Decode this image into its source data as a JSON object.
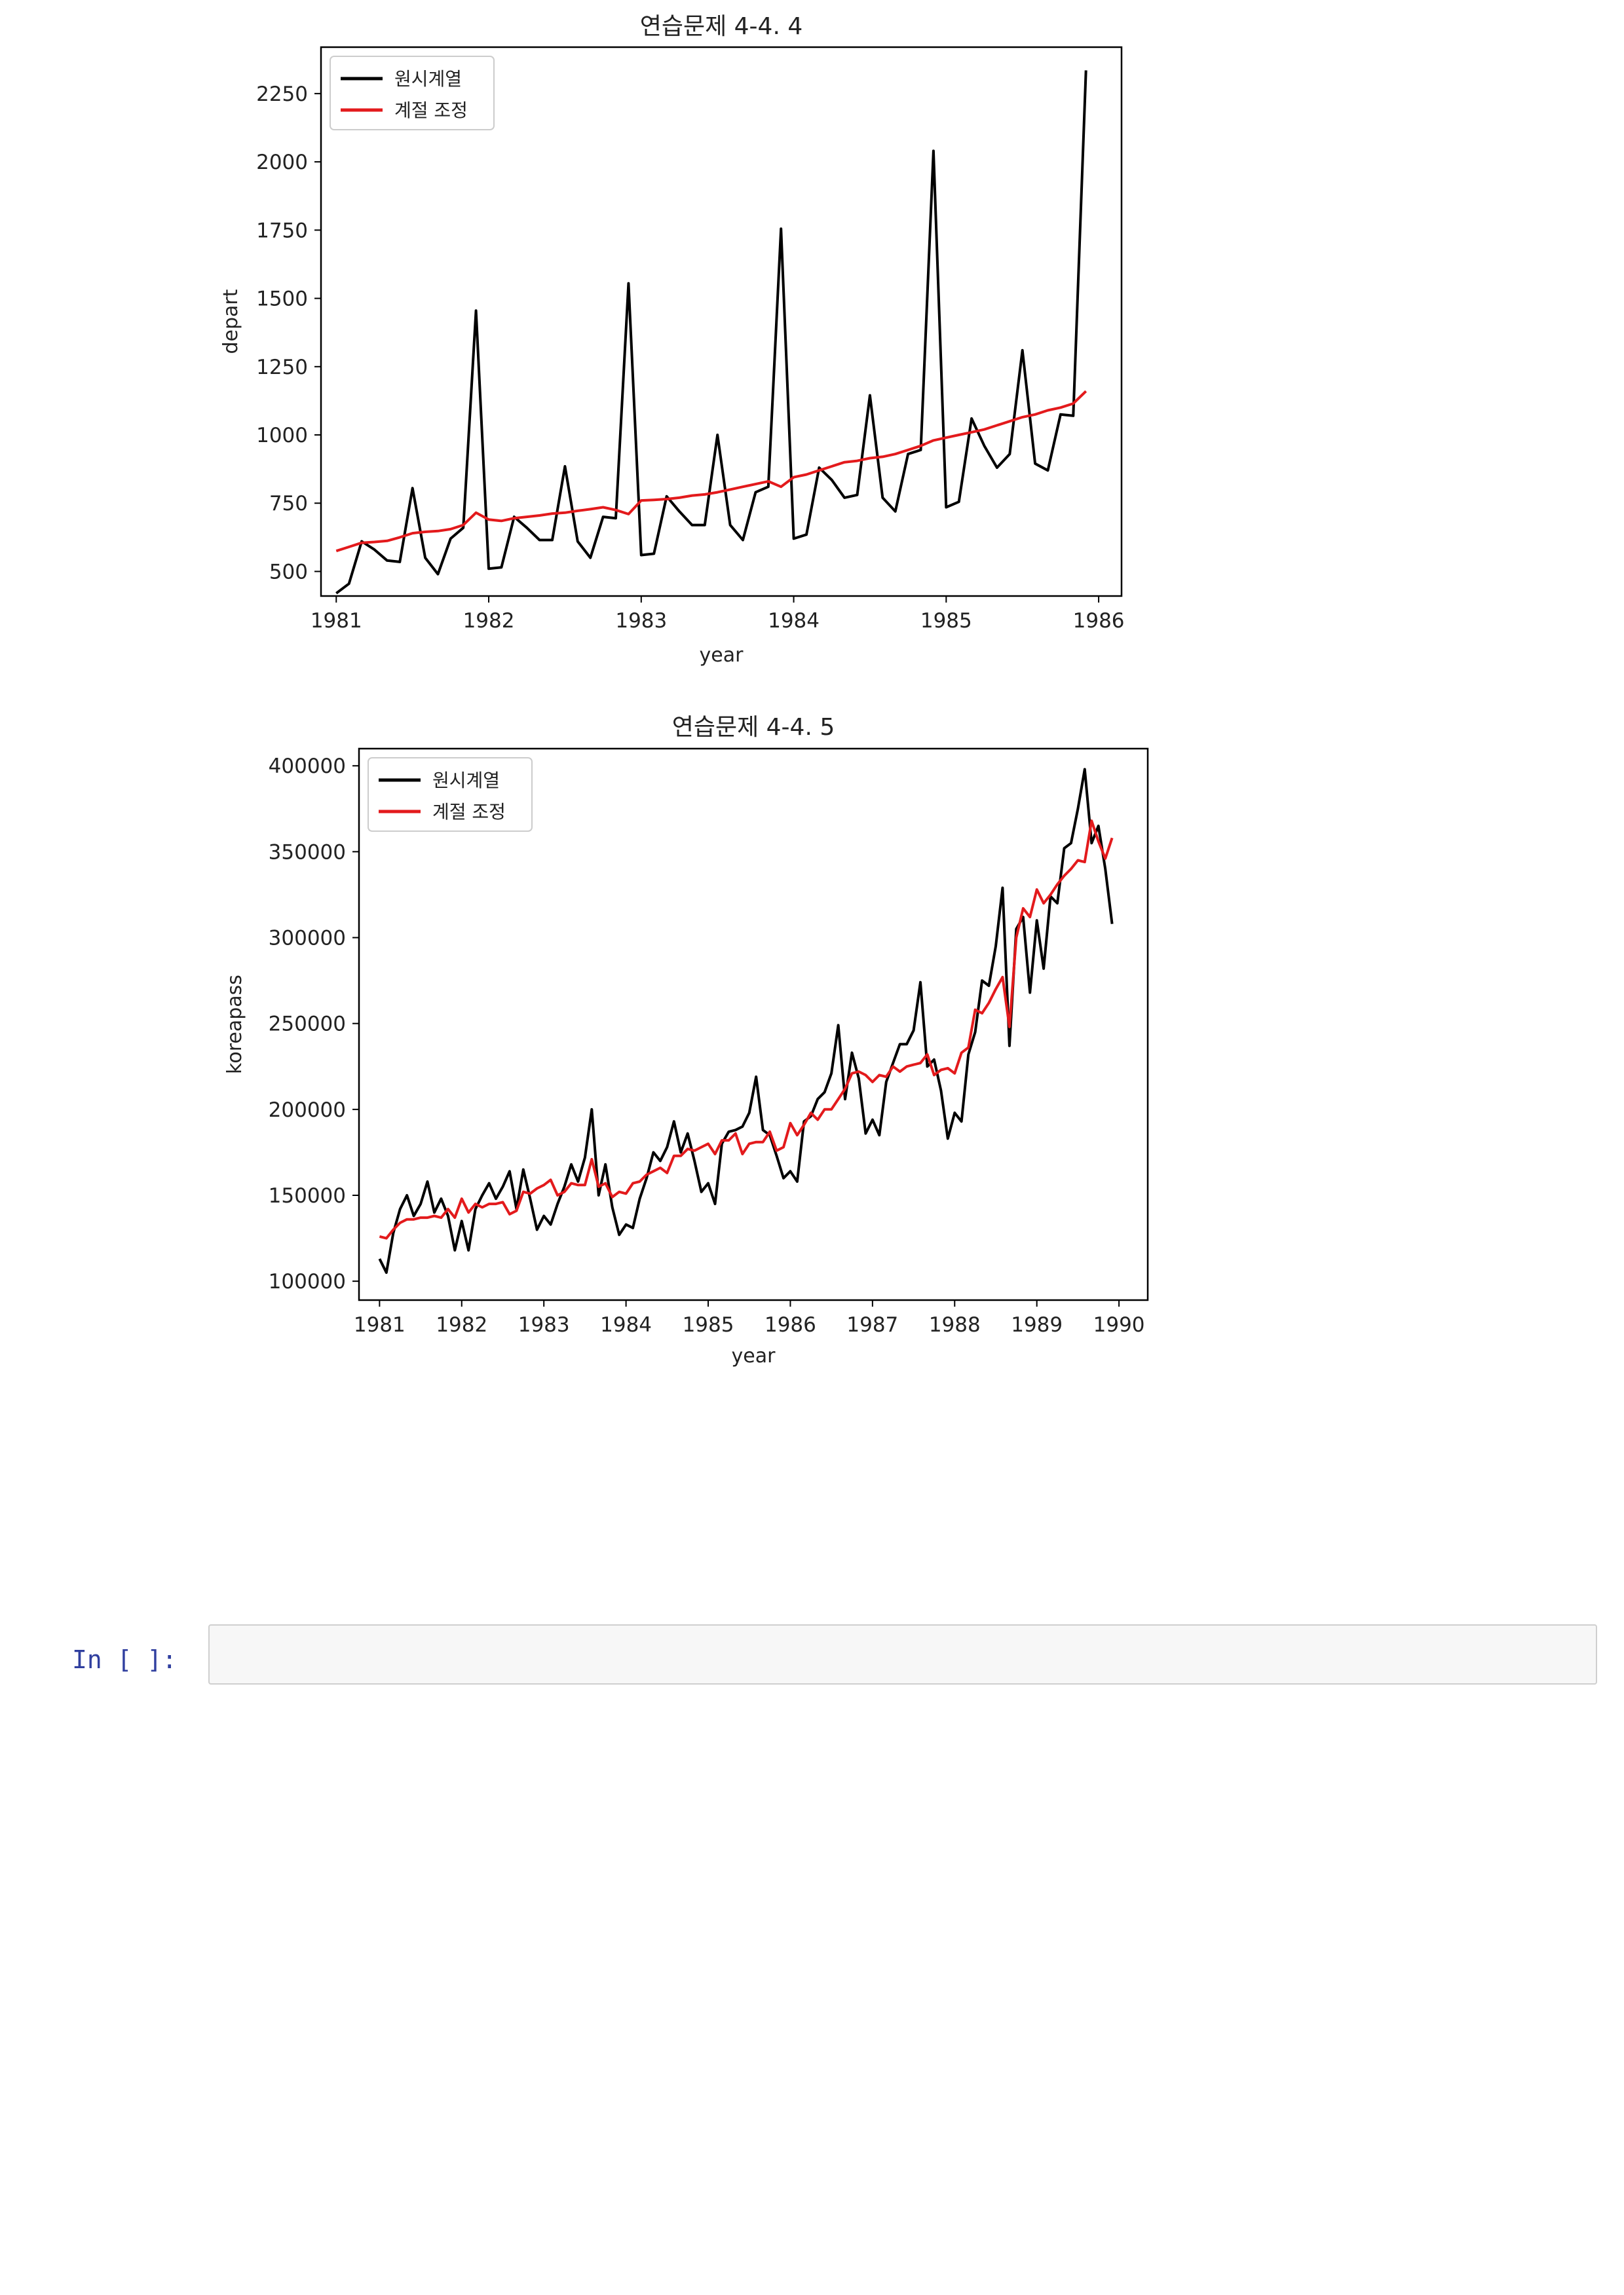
{
  "notebook": {
    "prompt_label": "In [ ]:",
    "input_value": ""
  },
  "chart_data": [
    {
      "type": "line",
      "title": "연습문제 4-4. 4",
      "xlabel": "year",
      "ylabel": "depart",
      "xlim": [
        1980.9,
        1986.15
      ],
      "ylim": [
        410,
        2420
      ],
      "x_ticks": [
        1981,
        1982,
        1983,
        1984,
        1985,
        1986
      ],
      "x_tick_labels": [
        "1981",
        "1982",
        "1983",
        "1984",
        "1985",
        "1986"
      ],
      "y_ticks": [
        500,
        750,
        1000,
        1250,
        1500,
        1750,
        2000,
        2250
      ],
      "y_tick_labels": [
        "500",
        "750",
        "1000",
        "1250",
        "1500",
        "1750",
        "2000",
        "2250"
      ],
      "x_start": 1981.0,
      "x_step": 0.083333,
      "legend_position": "upper-left",
      "grid": false,
      "series": [
        {
          "name": "원시계열",
          "color": "#000000",
          "values": [
            420,
            455,
            610,
            580,
            540,
            535,
            805,
            550,
            490,
            620,
            660,
            1455,
            510,
            515,
            700,
            660,
            615,
            615,
            885,
            610,
            550,
            700,
            695,
            1555,
            560,
            565,
            775,
            720,
            670,
            670,
            1000,
            670,
            615,
            790,
            810,
            1755,
            620,
            635,
            880,
            835,
            770,
            780,
            1145,
            770,
            720,
            930,
            945,
            2040,
            735,
            755,
            1060,
            960,
            880,
            930,
            1310,
            895,
            870,
            1075,
            1070,
            2335
          ]
        },
        {
          "name": "계절 조정",
          "color": "#e31a1c",
          "values": [
            575,
            590,
            605,
            608,
            612,
            625,
            640,
            645,
            648,
            655,
            670,
            715,
            690,
            685,
            695,
            700,
            705,
            712,
            715,
            722,
            728,
            735,
            725,
            710,
            760,
            762,
            765,
            770,
            778,
            782,
            790,
            800,
            810,
            820,
            830,
            810,
            845,
            855,
            870,
            885,
            900,
            905,
            915,
            920,
            930,
            945,
            960,
            980,
            990,
            1000,
            1010,
            1020,
            1035,
            1050,
            1065,
            1075,
            1090,
            1100,
            1115,
            1160
          ]
        }
      ]
    },
    {
      "type": "line",
      "title": "연습문제 4-4. 5",
      "xlabel": "year",
      "ylabel": "koreapass",
      "xlim": [
        1980.75,
        1990.35
      ],
      "ylim": [
        89000,
        410000
      ],
      "x_ticks": [
        1981,
        1982,
        1983,
        1984,
        1985,
        1986,
        1987,
        1988,
        1989,
        1990
      ],
      "x_tick_labels": [
        "1981",
        "1982",
        "1983",
        "1984",
        "1985",
        "1986",
        "1987",
        "1988",
        "1989",
        "1990"
      ],
      "y_ticks": [
        100000,
        150000,
        200000,
        250000,
        300000,
        350000,
        400000
      ],
      "y_tick_labels": [
        "100000",
        "150000",
        "200000",
        "250000",
        "300000",
        "350000",
        "400000"
      ],
      "x_start": 1981.0,
      "x_step": 0.083333,
      "legend_position": "upper-left",
      "grid": false,
      "series": [
        {
          "name": "원시계열",
          "color": "#000000",
          "values": [
            113000,
            105000,
            128000,
            142000,
            150000,
            138000,
            145000,
            158000,
            140000,
            148000,
            138000,
            118000,
            135000,
            118000,
            142000,
            150000,
            157000,
            148000,
            155000,
            164000,
            142000,
            165000,
            148000,
            130000,
            138000,
            133000,
            145000,
            155000,
            168000,
            158000,
            172000,
            200000,
            150000,
            168000,
            143000,
            127000,
            133000,
            131000,
            148000,
            160000,
            175000,
            170000,
            178000,
            193000,
            175000,
            186000,
            170000,
            152000,
            157000,
            145000,
            180000,
            187000,
            188000,
            190000,
            198000,
            219000,
            188000,
            185000,
            173000,
            160000,
            164000,
            158000,
            193000,
            196000,
            206000,
            210000,
            221000,
            249000,
            206000,
            233000,
            218000,
            186000,
            194000,
            185000,
            216000,
            227000,
            238000,
            238000,
            246000,
            274000,
            225000,
            229000,
            211000,
            183000,
            198000,
            193000,
            232000,
            245000,
            275000,
            272000,
            295000,
            329000,
            237000,
            305000,
            312000,
            268000,
            310000,
            282000,
            324000,
            320000,
            352000,
            355000,
            375000,
            398000,
            355000,
            365000,
            340000,
            308000
          ]
        },
        {
          "name": "계절 조정",
          "color": "#e31a1c",
          "values": [
            126000,
            125000,
            130000,
            134000,
            136000,
            136000,
            137000,
            137000,
            138000,
            137000,
            142000,
            137000,
            148000,
            140000,
            145000,
            143000,
            145000,
            145000,
            146000,
            139000,
            141000,
            152000,
            151000,
            154000,
            156000,
            159000,
            150000,
            152000,
            157000,
            156000,
            156000,
            171000,
            155000,
            157000,
            149000,
            152000,
            151000,
            157000,
            158000,
            162000,
            164000,
            166000,
            163000,
            173000,
            173000,
            177000,
            176000,
            178000,
            180000,
            174000,
            182000,
            182000,
            186000,
            174000,
            180000,
            181000,
            181000,
            187000,
            176000,
            178000,
            192000,
            185000,
            191000,
            198000,
            194000,
            200000,
            200000,
            206000,
            212000,
            221000,
            222000,
            220000,
            216000,
            220000,
            219000,
            225000,
            222000,
            225000,
            226000,
            227000,
            232000,
            220000,
            223000,
            224000,
            221000,
            233000,
            236000,
            258000,
            256000,
            262000,
            270000,
            277000,
            248000,
            300000,
            317000,
            312000,
            328000,
            320000,
            325000,
            331000,
            336000,
            340000,
            345000,
            344000,
            368000,
            356000,
            346000,
            358000
          ]
        }
      ]
    }
  ]
}
